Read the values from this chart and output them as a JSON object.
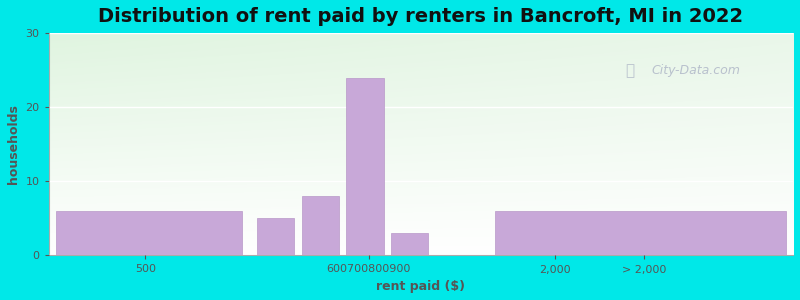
{
  "title": "Distribution of rent paid by renters in Bancroft, MI in 2022",
  "xlabel": "rent paid ($)",
  "ylabel": "households",
  "bar_color": "#c8a8d8",
  "bar_edge_color": "#b898c8",
  "background_outer": "#00e8e8",
  "ylim": [
    0,
    30
  ],
  "yticks": [
    0,
    10,
    20,
    30
  ],
  "values": [
    6,
    5,
    8,
    24,
    3,
    6
  ],
  "xlim": [
    0,
    100
  ],
  "bar_lefts": [
    1,
    28,
    34,
    40,
    46,
    60
  ],
  "bar_widths": [
    25,
    5,
    5,
    5,
    5,
    39
  ],
  "xtick_positions": [
    13,
    43,
    68,
    80
  ],
  "xtick_labels": [
    "500",
    "600700800900",
    "2,000",
    "> 2,000"
  ],
  "grid_color": "#dddddd",
  "title_fontsize": 14,
  "axis_label_fontsize": 9,
  "watermark": "City-Data.com"
}
